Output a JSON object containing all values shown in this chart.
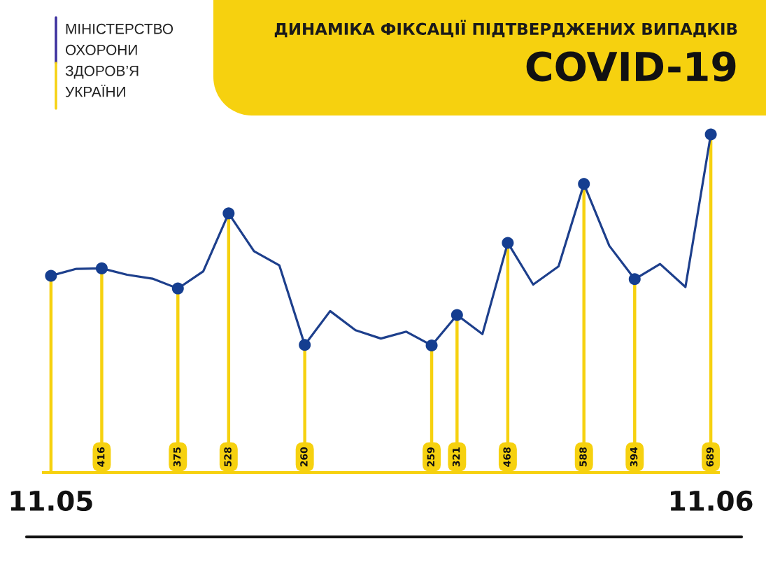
{
  "chart_data": {
    "type": "line",
    "title": "ДИНАМІКА ФІКСАЦІЇ ПІДТВЕРДЖЕНИХ ВИПАДКІВ",
    "subtitle": "COVID-19",
    "annotations": [
      "МІНІСТЕРСТВО\nОХОРОНИ\nЗДОРОВ’Я\nУКРАЇНИ"
    ],
    "categories": [
      "11.05",
      null,
      null,
      null,
      null,
      null,
      null,
      null,
      null,
      null,
      null,
      null,
      null,
      null,
      null,
      null,
      null,
      null,
      null,
      null,
      null,
      null,
      null,
      null,
      null,
      null,
      "11.06"
    ],
    "series": [
      {
        "color": "#1d3f8c",
        "marker": "none",
        "values": [
          401,
          415,
          416,
          403,
          395,
          375,
          410,
          528,
          451,
          422,
          260,
          329,
          290,
          273,
          287,
          259,
          321,
          282,
          468,
          383,
          420,
          588,
          462,
          394,
          425,
          378,
          689
        ]
      },
      {
        "type": "lollipop",
        "color": "#153e90",
        "values": [
          401,
          null,
          416,
          null,
          null,
          375,
          null,
          528,
          null,
          null,
          260,
          null,
          null,
          null,
          null,
          259,
          321,
          null,
          468,
          null,
          null,
          588,
          null,
          394,
          null,
          null,
          689
        ],
        "value_labels": [
          null,
          null,
          "416",
          null,
          null,
          "375",
          null,
          "528",
          null,
          null,
          "260",
          null,
          null,
          null,
          null,
          "259",
          "321",
          null,
          "468",
          null,
          null,
          "588",
          null,
          "394",
          null,
          null,
          "689"
        ]
      }
    ],
    "tick_labels": "x",
    "marker": "circle",
    "line_style": "solid"
  }
}
